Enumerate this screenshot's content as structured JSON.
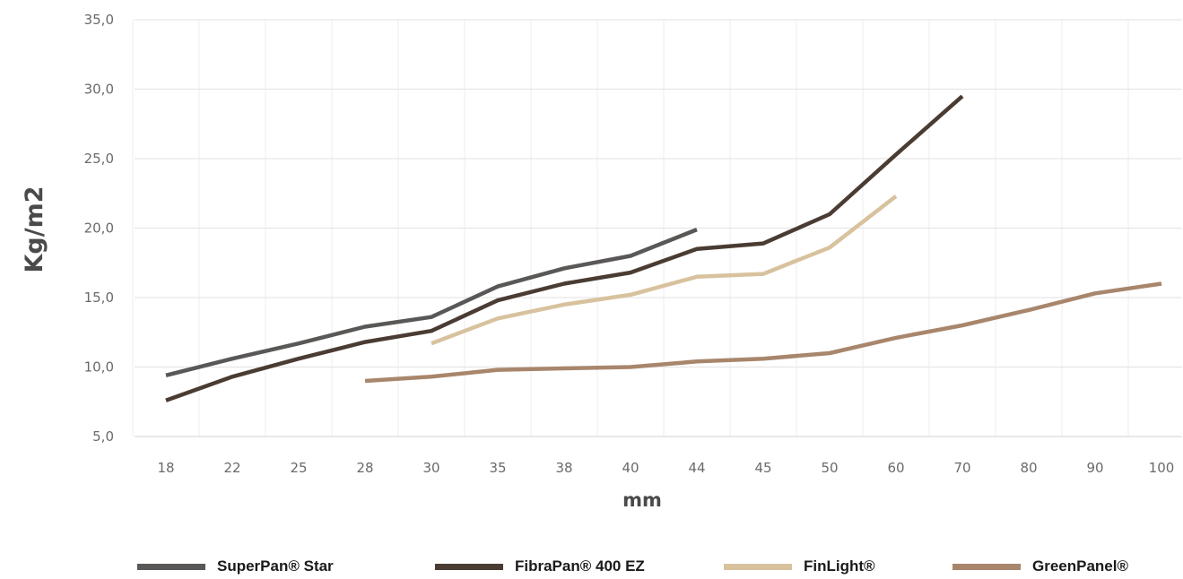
{
  "chart_data": {
    "type": "line",
    "xlabel": "mm",
    "ylabel": "Kg/m2",
    "categories": [
      "18",
      "22",
      "25",
      "28",
      "30",
      "35",
      "38",
      "40",
      "44",
      "45",
      "50",
      "60",
      "70",
      "80",
      "90",
      "100"
    ],
    "y_tick_labels": [
      "5,0",
      "10,0",
      "15,0",
      "20,0",
      "25,0",
      "30,0",
      "35,0"
    ],
    "y_ticks": [
      5,
      10,
      15,
      20,
      25,
      30,
      35
    ],
    "ylim": [
      5,
      35
    ],
    "grid": true,
    "legend_position": "bottom",
    "series": [
      {
        "name": "SuperPan® Star",
        "color": "#5a5857",
        "values": [
          9.4,
          10.6,
          11.7,
          12.9,
          13.6,
          15.8,
          17.1,
          18.0,
          19.9,
          null,
          null,
          null,
          null,
          null,
          null,
          null
        ]
      },
      {
        "name": "FibraPan® 400 EZ",
        "color": "#4a3c33",
        "values": [
          7.6,
          9.3,
          10.6,
          11.8,
          12.6,
          14.8,
          16.0,
          16.8,
          18.5,
          18.9,
          21.0,
          25.3,
          29.5,
          null,
          null,
          null
        ]
      },
      {
        "name": "FinLight®",
        "color": "#d8c29e",
        "values": [
          null,
          null,
          null,
          null,
          11.7,
          13.5,
          14.5,
          15.2,
          16.5,
          16.7,
          18.6,
          22.3,
          null,
          null,
          null,
          null
        ]
      },
      {
        "name": "GreenPanel®",
        "color": "#a8866c",
        "values": [
          null,
          null,
          null,
          9.0,
          9.3,
          9.8,
          9.9,
          10.0,
          10.4,
          10.6,
          11.0,
          12.1,
          13.0,
          14.1,
          15.3,
          16.0
        ]
      }
    ]
  }
}
